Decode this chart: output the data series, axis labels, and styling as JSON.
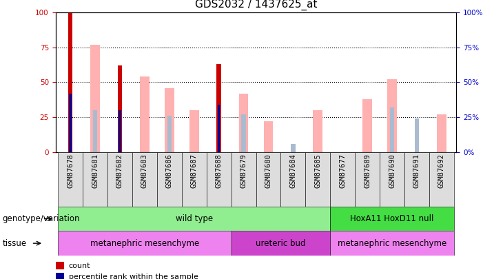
{
  "title": "GDS2032 / 1437625_at",
  "samples": [
    "GSM87678",
    "GSM87681",
    "GSM87682",
    "GSM87683",
    "GSM87686",
    "GSM87687",
    "GSM87688",
    "GSM87679",
    "GSM87680",
    "GSM87684",
    "GSM87685",
    "GSM87677",
    "GSM87689",
    "GSM87690",
    "GSM87691",
    "GSM87692"
  ],
  "count": [
    100,
    0,
    62,
    0,
    0,
    0,
    63,
    0,
    0,
    0,
    0,
    0,
    0,
    0,
    0,
    0
  ],
  "percentile_rank": [
    42,
    0,
    30,
    0,
    0,
    0,
    34,
    0,
    0,
    0,
    0,
    0,
    0,
    0,
    0,
    0
  ],
  "value_absent": [
    0,
    77,
    0,
    54,
    46,
    30,
    0,
    42,
    22,
    0,
    30,
    0,
    38,
    52,
    0,
    27
  ],
  "rank_absent": [
    0,
    30,
    0,
    0,
    26,
    0,
    0,
    27,
    0,
    6,
    0,
    0,
    0,
    32,
    24,
    0
  ],
  "ylim": [
    0,
    100
  ],
  "yticks": [
    0,
    25,
    50,
    75,
    100
  ],
  "genotype_groups": [
    {
      "label": "wild type",
      "start": 0,
      "end": 11,
      "color": "#90EE90"
    },
    {
      "label": "HoxA11 HoxD11 null",
      "start": 11,
      "end": 16,
      "color": "#44DD44"
    }
  ],
  "tissue_groups": [
    {
      "label": "metanephric mesenchyme",
      "start": 0,
      "end": 7,
      "color": "#EE82EE"
    },
    {
      "label": "ureteric bud",
      "start": 7,
      "end": 11,
      "color": "#CC44CC"
    },
    {
      "label": "metanephric mesenchyme",
      "start": 11,
      "end": 16,
      "color": "#EE82EE"
    }
  ],
  "count_color": "#CC0000",
  "rank_color": "#000099",
  "value_absent_color": "#FFB0B0",
  "rank_absent_color": "#AABBD0",
  "title_fontsize": 11,
  "tick_fontsize": 7.5,
  "label_fontsize": 8.5,
  "legend_fontsize": 8,
  "right_axis_color": "#0000CC",
  "left_axis_color": "#CC0000"
}
